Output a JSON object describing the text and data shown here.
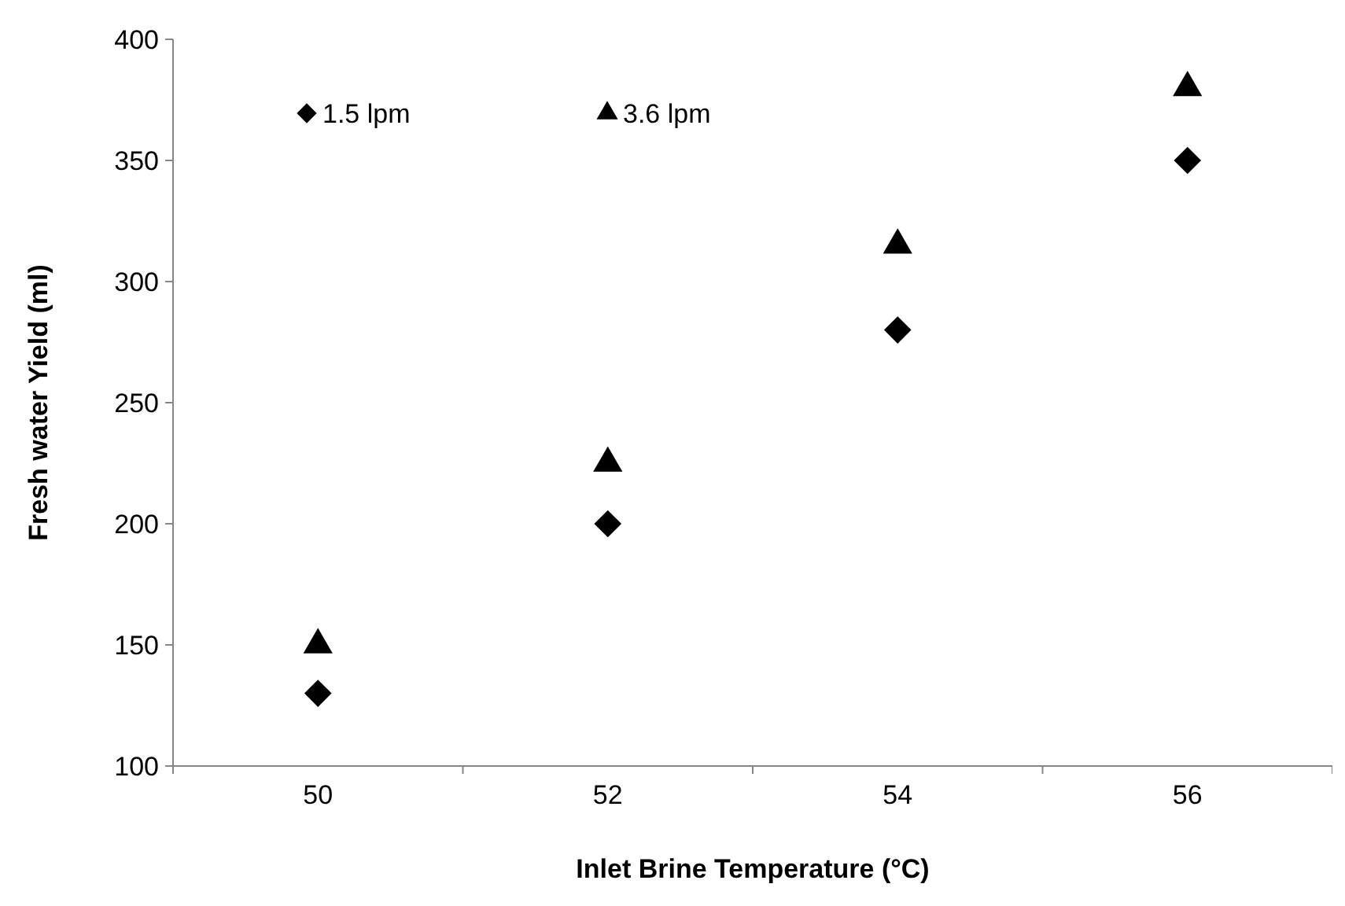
{
  "chart_data": {
    "type": "scatter",
    "xlabel": "Inlet Brine Temperature (°C)",
    "ylabel": "Fresh water Yield (ml)",
    "categories": [
      "50",
      "52",
      "54",
      "56"
    ],
    "series": [
      {
        "name": "1.5 lpm",
        "color": "#000000",
        "marker": "diamond",
        "values": [
          130,
          200,
          280,
          350
        ]
      },
      {
        "name": "3.6 lpm",
        "color": "#000000",
        "marker": "triangle",
        "values": [
          150,
          225,
          315,
          380
        ]
      }
    ],
    "ylim": [
      100,
      400
    ],
    "yticks": [
      100,
      150,
      200,
      250,
      300,
      350,
      400
    ],
    "grid": false,
    "legend": "top left"
  }
}
